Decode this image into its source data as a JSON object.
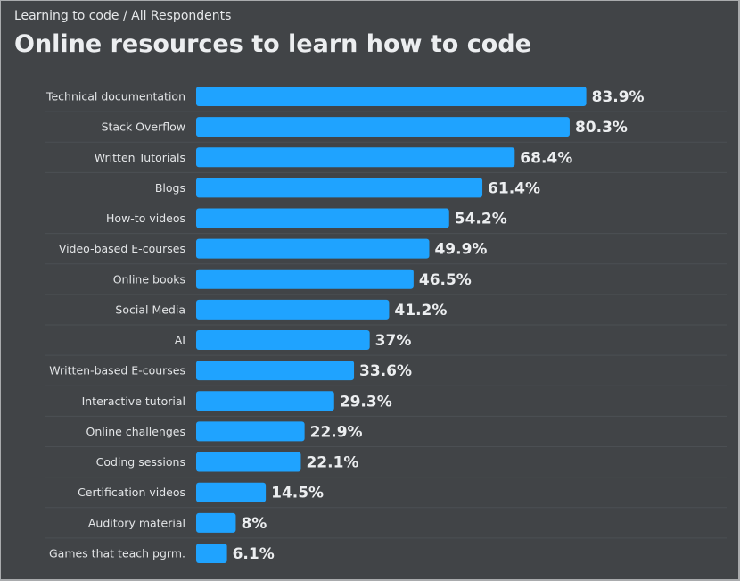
{
  "breadcrumb": "Learning to code / All Respondents",
  "title": "Online resources to learn how to code",
  "colors": {
    "bar": "#1fa3ff",
    "background": "#414447",
    "grid": "#4b4f53"
  },
  "chart_data": {
    "type": "bar",
    "orientation": "horizontal",
    "title": "Online resources to learn how to code",
    "categories": [
      "Technical documentation",
      "Stack Overflow",
      "Written Tutorials",
      "Blogs",
      "How-to videos",
      "Video-based E-courses",
      "Online books",
      "Social Media",
      "AI",
      "Written-based E-courses",
      "Interactive tutorial",
      "Online challenges",
      "Coding sessions",
      "Certification videos",
      "Auditory material",
      "Games that teach pgrm."
    ],
    "values": [
      83.9,
      80.3,
      68.4,
      61.4,
      54.2,
      49.9,
      46.5,
      41.2,
      37,
      33.6,
      29.3,
      22.9,
      22.1,
      14.5,
      8,
      6.1
    ],
    "data_labels": [
      "83.9%",
      "80.3%",
      "68.4%",
      "61.4%",
      "54.2%",
      "49.9%",
      "46.5%",
      "41.2%",
      "37%",
      "33.6%",
      "29.3%",
      "22.9%",
      "22.1%",
      "14.5%",
      "8%",
      "6.1%"
    ],
    "unit": "%",
    "grid": false
  }
}
